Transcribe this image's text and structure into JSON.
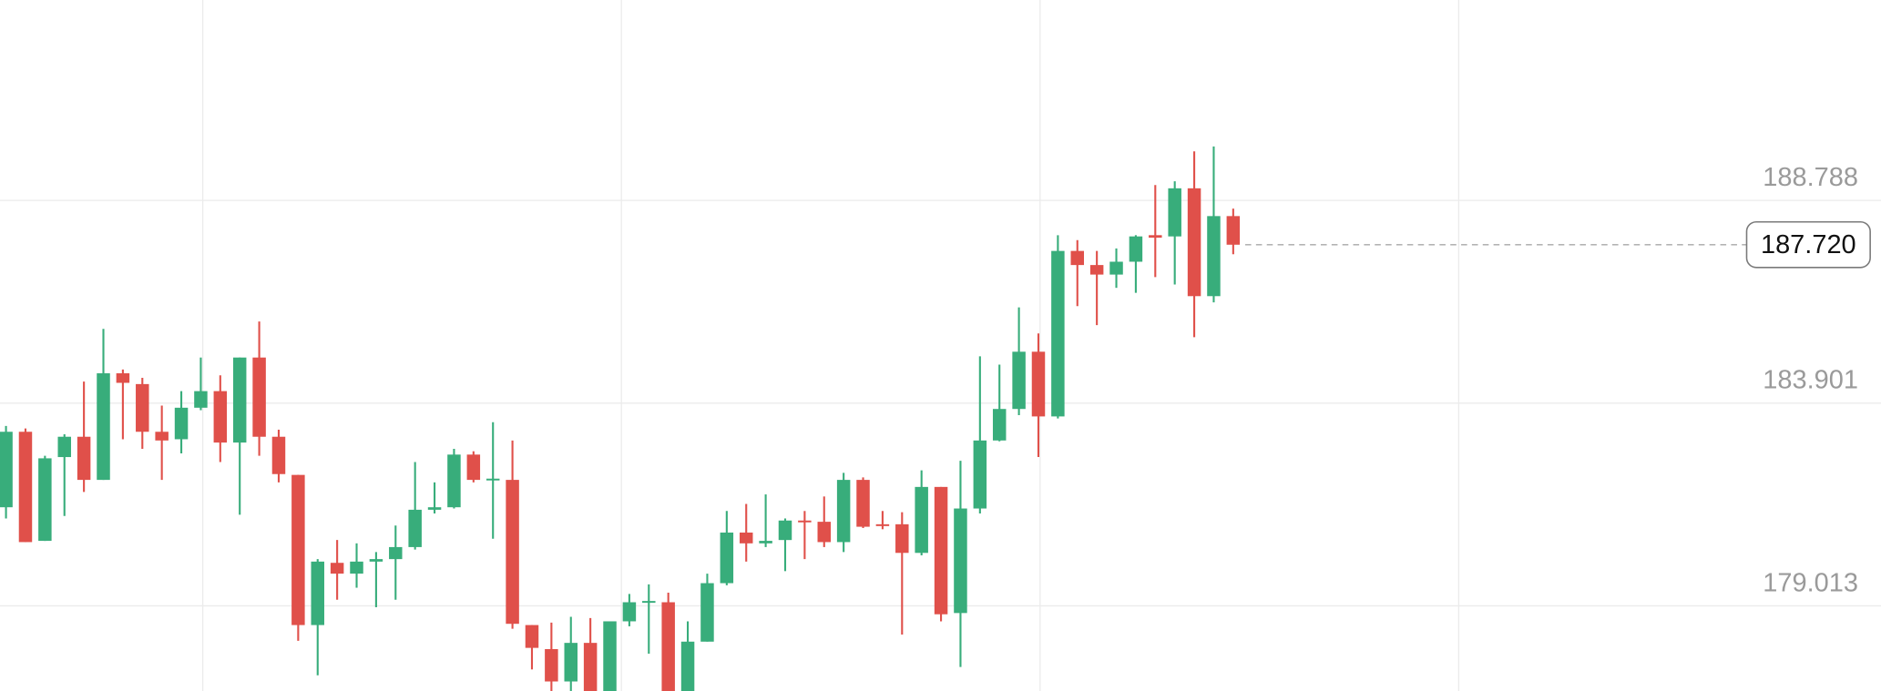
{
  "chart_data": {
    "type": "candlestick",
    "ylim": [
      176.96,
      193.62
    ],
    "yticks": [
      188.788,
      183.901,
      179.013
    ],
    "grid": true,
    "up_color": "#38ad7b",
    "down_color": "#e0504a",
    "open": [
      181.39,
      183.21,
      180.58,
      182.6,
      183.09,
      182.05,
      184.62,
      184.36,
      183.21,
      183.03,
      183.79,
      184.19,
      182.95,
      185.0,
      183.09,
      182.17,
      178.55,
      180.05,
      179.79,
      180.08,
      180.14,
      180.43,
      181.33,
      181.39,
      182.66,
      182.05,
      182.05,
      178.55,
      177.97,
      177.19,
      178.12,
      176.85,
      178.64,
      179.1,
      179.1,
      176.8,
      178.15,
      179.56,
      180.78,
      180.52,
      180.6,
      181.07,
      181.04,
      180.55,
      182.05,
      180.98,
      180.98,
      180.29,
      181.88,
      178.84,
      181.36,
      183.0,
      183.76,
      185.14,
      183.58,
      187.57,
      187.23,
      187.0,
      187.31,
      187.95,
      187.92,
      189.08,
      186.48,
      188.41
    ],
    "high": [
      183.35,
      183.29,
      182.63,
      183.15,
      184.42,
      185.69,
      184.71,
      184.51,
      183.84,
      184.19,
      185.0,
      184.57,
      185.0,
      185.87,
      183.26,
      182.17,
      180.14,
      180.6,
      180.52,
      180.31,
      180.95,
      182.48,
      181.99,
      182.8,
      182.74,
      183.44,
      183.0,
      178.55,
      178.61,
      178.75,
      178.72,
      178.64,
      179.3,
      179.53,
      179.33,
      178.64,
      179.79,
      181.3,
      181.47,
      181.7,
      181.12,
      181.3,
      181.65,
      182.22,
      182.11,
      181.3,
      181.27,
      182.28,
      181.88,
      182.51,
      185.03,
      184.83,
      186.21,
      185.58,
      187.95,
      187.83,
      187.57,
      187.63,
      187.95,
      189.16,
      189.25,
      189.97,
      190.09,
      188.59
    ],
    "low": [
      181.12,
      180.55,
      180.58,
      181.18,
      181.76,
      182.05,
      183.03,
      182.8,
      182.05,
      182.69,
      183.73,
      182.48,
      181.21,
      182.63,
      181.99,
      178.17,
      177.34,
      179.16,
      179.45,
      178.98,
      179.16,
      180.37,
      181.24,
      181.36,
      181.99,
      180.63,
      178.46,
      177.48,
      176.8,
      176.8,
      176.7,
      176.7,
      178.52,
      177.86,
      176.6,
      176.6,
      178.15,
      179.51,
      180.08,
      180.43,
      179.85,
      180.14,
      180.43,
      180.31,
      180.89,
      180.86,
      178.32,
      180.23,
      178.64,
      177.54,
      181.24,
      182.98,
      183.61,
      182.6,
      183.53,
      186.24,
      185.78,
      186.68,
      186.56,
      186.94,
      186.76,
      185.49,
      186.33,
      187.49
    ],
    "close": [
      183.21,
      180.55,
      182.57,
      183.09,
      182.05,
      184.62,
      184.39,
      183.21,
      183.0,
      183.79,
      184.19,
      182.95,
      185.0,
      183.09,
      182.19,
      178.55,
      180.08,
      179.79,
      180.08,
      180.14,
      180.43,
      181.33,
      181.39,
      182.66,
      182.05,
      182.08,
      178.58,
      178.0,
      177.19,
      178.12,
      176.85,
      178.64,
      179.1,
      179.13,
      176.7,
      178.15,
      179.56,
      180.78,
      180.52,
      180.58,
      181.07,
      181.04,
      180.55,
      182.05,
      180.92,
      180.95,
      180.29,
      181.88,
      178.81,
      181.36,
      183.0,
      183.76,
      185.14,
      183.58,
      187.57,
      187.23,
      187.0,
      187.31,
      187.92,
      187.89,
      189.08,
      186.48,
      188.41,
      187.72
    ],
    "price_line": {
      "value": 187.72,
      "label": "187.720"
    }
  }
}
